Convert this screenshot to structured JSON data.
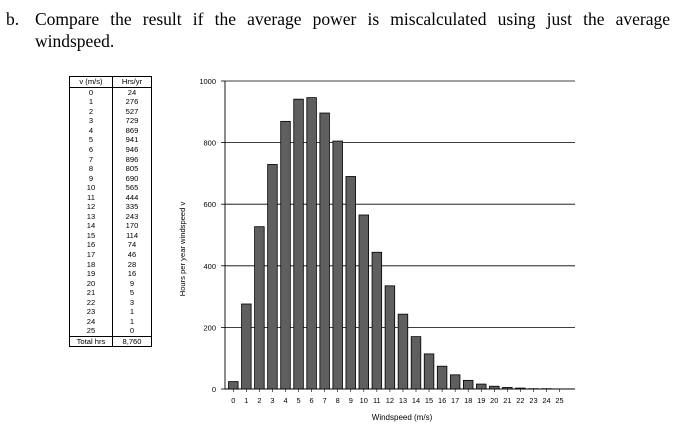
{
  "question": {
    "marker": "b.",
    "text": "Compare the result if the average power is miscalculated using just the average windspeed."
  },
  "table": {
    "headers": [
      "v (m/s)",
      "Hrs/yr"
    ],
    "rows": [
      [
        "0",
        "24"
      ],
      [
        "1",
        "276"
      ],
      [
        "2",
        "527"
      ],
      [
        "3",
        "729"
      ],
      [
        "4",
        "869"
      ],
      [
        "5",
        "941"
      ],
      [
        "6",
        "946"
      ],
      [
        "7",
        "896"
      ],
      [
        "8",
        "805"
      ],
      [
        "9",
        "690"
      ],
      [
        "10",
        "565"
      ],
      [
        "11",
        "444"
      ],
      [
        "12",
        "335"
      ],
      [
        "13",
        "243"
      ],
      [
        "14",
        "170"
      ],
      [
        "15",
        "114"
      ],
      [
        "16",
        "74"
      ],
      [
        "17",
        "46"
      ],
      [
        "18",
        "28"
      ],
      [
        "19",
        "16"
      ],
      [
        "20",
        "9"
      ],
      [
        "21",
        "5"
      ],
      [
        "22",
        "3"
      ],
      [
        "23",
        "1"
      ],
      [
        "24",
        "1"
      ],
      [
        "25",
        "0"
      ]
    ],
    "total": [
      "Total hrs",
      "8,760"
    ]
  },
  "chart_data": {
    "type": "bar",
    "categories": [
      "0",
      "1",
      "2",
      "3",
      "4",
      "5",
      "6",
      "7",
      "8",
      "9",
      "10",
      "11",
      "12",
      "13",
      "14",
      "15",
      "16",
      "17",
      "18",
      "19",
      "20",
      "21",
      "22",
      "23",
      "24",
      "25"
    ],
    "values": [
      24,
      276,
      527,
      729,
      869,
      941,
      946,
      896,
      805,
      690,
      565,
      444,
      335,
      243,
      170,
      114,
      74,
      46,
      28,
      16,
      9,
      5,
      3,
      1,
      1,
      0
    ],
    "xlabel": "Windspeed (m/s)",
    "ylabel": "Hours per year windspeed v",
    "ylim": [
      0,
      1000
    ],
    "yticks": [
      0,
      200,
      400,
      600,
      800,
      1000
    ],
    "grid": "horizontal",
    "bar_color": "#5f5f5f"
  }
}
